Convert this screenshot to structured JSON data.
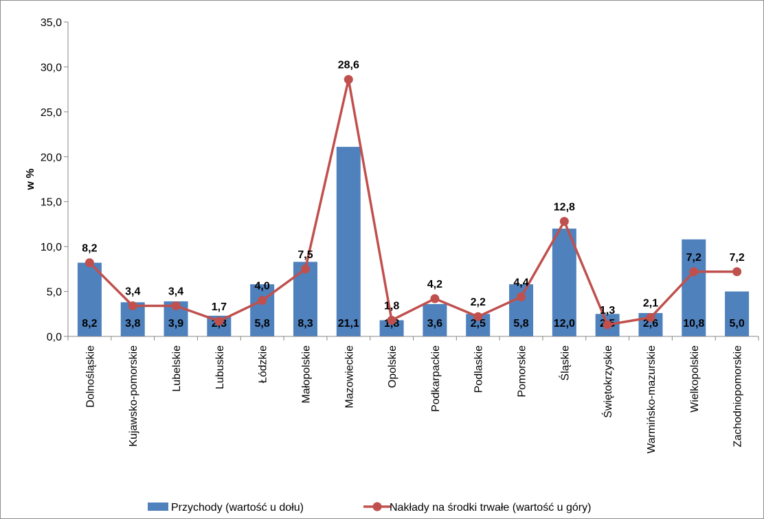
{
  "chart_data": {
    "type": "bar",
    "categories": [
      "Dolnośląskie",
      "Kujawsko-pomorskie",
      "Lubelskie",
      "Lubuskie",
      "Łódzkie",
      "Małopolskie",
      "Mazowieckie",
      "Opolskie",
      "Podkarpackie",
      "Podlaskie",
      "Pomorskie",
      "Śląskie",
      "Świętokrzyskie",
      "Warmińsko-mazurskie",
      "Wielkopolskie",
      "Zachodniopomorskie"
    ],
    "series": [
      {
        "name": "Przychody (wartość u dołu)",
        "kind": "bar",
        "color": "#4f81bd",
        "values": [
          8.2,
          3.8,
          3.9,
          2.3,
          5.8,
          8.3,
          21.1,
          1.8,
          3.6,
          2.5,
          5.8,
          12.0,
          2.5,
          2.6,
          10.8,
          5.0
        ],
        "labels": [
          "8,2",
          "3,8",
          "3,9",
          "2,3",
          "5,8",
          "8,3",
          "21,1",
          "1,8",
          "3,6",
          "2,5",
          "5,8",
          "12,0",
          "2,5",
          "2,6",
          "10,8",
          "5,0"
        ]
      },
      {
        "name": "Nakłady na środki trwałe (wartość u góry)",
        "kind": "line",
        "color": "#c0504d",
        "values": [
          8.2,
          3.4,
          3.4,
          1.7,
          4.0,
          7.5,
          28.6,
          1.8,
          4.2,
          2.2,
          4.4,
          12.8,
          1.3,
          2.1,
          7.2,
          7.2
        ],
        "labels": [
          "8,2",
          "3,4",
          "3,4",
          "1,7",
          "4,0",
          "7,5",
          "28,6",
          "1,8",
          "4,2",
          "2,2",
          "4,4",
          "12,8",
          "1,3",
          "2,1",
          "7,2",
          "7,2"
        ]
      }
    ],
    "ylabel": "w %",
    "ylim": [
      0,
      35
    ],
    "yticks": [
      0,
      5,
      10,
      15,
      20,
      25,
      30,
      35
    ],
    "ytick_labels": [
      "0,0",
      "5,0",
      "10,0",
      "15,0",
      "20,0",
      "25,0",
      "30,0",
      "35,0"
    ],
    "grid": false,
    "legend_position": "bottom"
  }
}
